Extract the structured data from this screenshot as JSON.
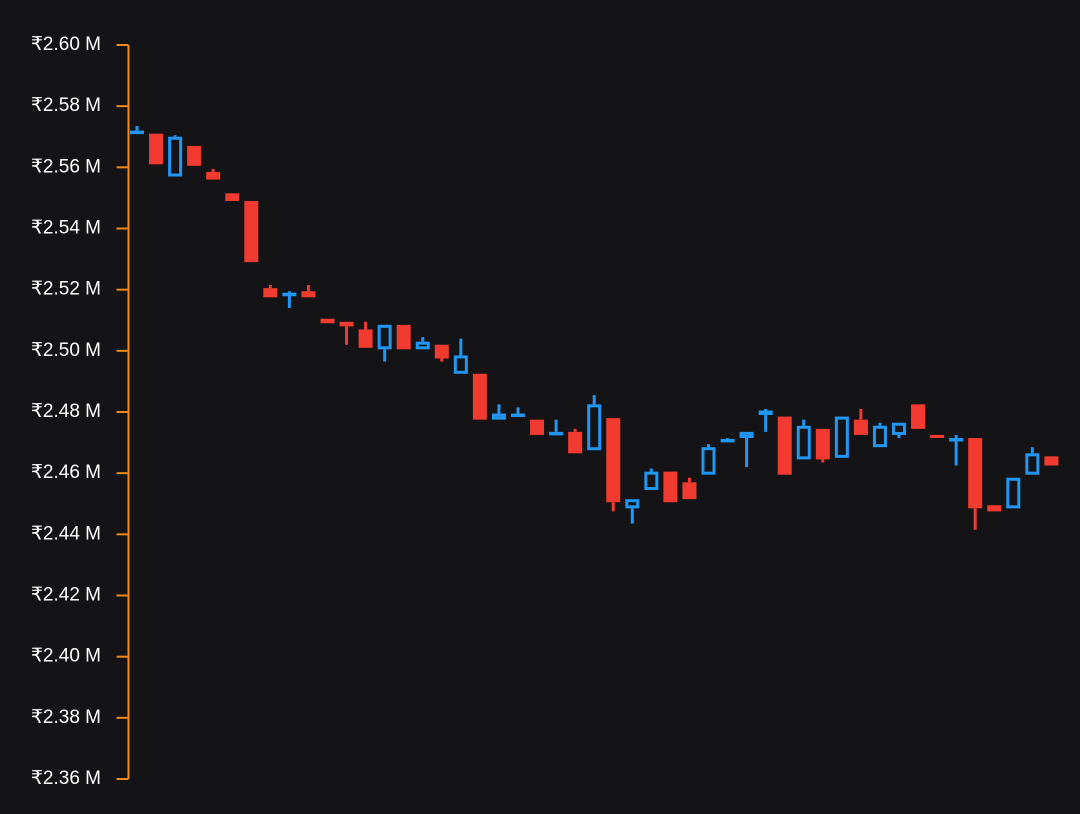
{
  "chart_data": {
    "type": "candlestick",
    "title": "",
    "xlabel": "",
    "ylabel": "",
    "ylim": [
      2.36,
      2.6
    ],
    "y_unit_suffix": "M",
    "y_currency_symbol": "₹",
    "grid": false,
    "y_ticks": [
      "₹2.60 M",
      "₹2.58 M",
      "₹2.56 M",
      "₹2.54 M",
      "₹2.52 M",
      "₹2.50 M",
      "₹2.48 M",
      "₹2.46 M",
      "₹2.44 M",
      "₹2.42 M",
      "₹2.40 M",
      "₹2.38 M",
      "₹2.36 M"
    ],
    "y_tick_values": [
      2.6,
      2.58,
      2.56,
      2.54,
      2.52,
      2.5,
      2.48,
      2.46,
      2.44,
      2.42,
      2.4,
      2.38,
      2.36
    ],
    "colors": {
      "background": "#141416",
      "axis": "#ef8a1f",
      "up_candle": "#2196f3",
      "down_candle": "#f23b30",
      "tick_text": "#ffffff"
    },
    "candles": [
      {
        "open": 2.5715,
        "high": 2.5735,
        "low": 2.571,
        "close": 2.572,
        "dir": "up"
      },
      {
        "open": 2.571,
        "high": 2.571,
        "low": 2.561,
        "close": 2.561,
        "dir": "down"
      },
      {
        "open": 2.557,
        "high": 2.5705,
        "low": 2.557,
        "close": 2.57,
        "dir": "up"
      },
      {
        "open": 2.567,
        "high": 2.567,
        "low": 2.5605,
        "close": 2.5605,
        "dir": "down"
      },
      {
        "open": 2.5585,
        "high": 2.5595,
        "low": 2.556,
        "close": 2.556,
        "dir": "down"
      },
      {
        "open": 2.5515,
        "high": 2.5515,
        "low": 2.549,
        "close": 2.549,
        "dir": "down"
      },
      {
        "open": 2.549,
        "high": 2.549,
        "low": 2.529,
        "close": 2.529,
        "dir": "down"
      },
      {
        "open": 2.5205,
        "high": 2.5215,
        "low": 2.5175,
        "close": 2.5175,
        "dir": "down"
      },
      {
        "open": 2.5185,
        "high": 2.5195,
        "low": 2.514,
        "close": 2.519,
        "dir": "up"
      },
      {
        "open": 2.5195,
        "high": 2.5215,
        "low": 2.5175,
        "close": 2.5175,
        "dir": "down"
      },
      {
        "open": 2.5105,
        "high": 2.5105,
        "low": 2.509,
        "close": 2.509,
        "dir": "down"
      },
      {
        "open": 2.5095,
        "high": 2.5095,
        "low": 2.502,
        "close": 2.508,
        "dir": "down"
      },
      {
        "open": 2.507,
        "high": 2.5095,
        "low": 2.501,
        "close": 2.501,
        "dir": "down"
      },
      {
        "open": 2.5005,
        "high": 2.5085,
        "low": 2.4965,
        "close": 2.5085,
        "dir": "up"
      },
      {
        "open": 2.5085,
        "high": 2.5085,
        "low": 2.5005,
        "close": 2.5005,
        "dir": "down"
      },
      {
        "open": 2.5005,
        "high": 2.5045,
        "low": 2.5005,
        "close": 2.503,
        "dir": "up"
      },
      {
        "open": 2.502,
        "high": 2.502,
        "low": 2.4965,
        "close": 2.4975,
        "dir": "down"
      },
      {
        "open": 2.4925,
        "high": 2.504,
        "low": 2.4925,
        "close": 2.4985,
        "dir": "up"
      },
      {
        "open": 2.4925,
        "high": 2.4925,
        "low": 2.4775,
        "close": 2.4775,
        "dir": "down"
      },
      {
        "open": 2.4775,
        "high": 2.4825,
        "low": 2.4775,
        "close": 2.4795,
        "dir": "up"
      },
      {
        "open": 2.479,
        "high": 2.4815,
        "low": 2.479,
        "close": 2.4795,
        "dir": "up"
      },
      {
        "open": 2.4775,
        "high": 2.4775,
        "low": 2.4725,
        "close": 2.4725,
        "dir": "down"
      },
      {
        "open": 2.4725,
        "high": 2.4775,
        "low": 2.4725,
        "close": 2.4735,
        "dir": "up"
      },
      {
        "open": 2.4735,
        "high": 2.4745,
        "low": 2.4665,
        "close": 2.4665,
        "dir": "down"
      },
      {
        "open": 2.4675,
        "high": 2.4855,
        "low": 2.4675,
        "close": 2.4825,
        "dir": "up"
      },
      {
        "open": 2.478,
        "high": 2.478,
        "low": 2.4475,
        "close": 2.4505,
        "dir": "down"
      },
      {
        "open": 2.4485,
        "high": 2.4515,
        "low": 2.4435,
        "close": 2.4515,
        "dir": "up"
      },
      {
        "open": 2.4545,
        "high": 2.4615,
        "low": 2.4545,
        "close": 2.4605,
        "dir": "up"
      },
      {
        "open": 2.4605,
        "high": 2.4605,
        "low": 2.4505,
        "close": 2.4505,
        "dir": "down"
      },
      {
        "open": 2.457,
        "high": 2.4585,
        "low": 2.4515,
        "close": 2.4515,
        "dir": "down"
      },
      {
        "open": 2.4595,
        "high": 2.4695,
        "low": 2.4595,
        "close": 2.4685,
        "dir": "up"
      },
      {
        "open": 2.4705,
        "high": 2.4715,
        "low": 2.4705,
        "close": 2.4712,
        "dir": "up"
      },
      {
        "open": 2.4715,
        "high": 2.4735,
        "low": 2.462,
        "close": 2.4735,
        "dir": "up"
      },
      {
        "open": 2.479,
        "high": 2.481,
        "low": 2.4735,
        "close": 2.4805,
        "dir": "up"
      },
      {
        "open": 2.4785,
        "high": 2.4785,
        "low": 2.4595,
        "close": 2.4595,
        "dir": "down"
      },
      {
        "open": 2.4645,
        "high": 2.4775,
        "low": 2.4645,
        "close": 2.4755,
        "dir": "up"
      },
      {
        "open": 2.4745,
        "high": 2.4745,
        "low": 2.4635,
        "close": 2.4645,
        "dir": "down"
      },
      {
        "open": 2.465,
        "high": 2.4785,
        "low": 2.465,
        "close": 2.4785,
        "dir": "up"
      },
      {
        "open": 2.4775,
        "high": 2.481,
        "low": 2.4725,
        "close": 2.4725,
        "dir": "down"
      },
      {
        "open": 2.4685,
        "high": 2.4765,
        "low": 2.4685,
        "close": 2.4755,
        "dir": "up"
      },
      {
        "open": 2.4725,
        "high": 2.4765,
        "low": 2.4715,
        "close": 2.4765,
        "dir": "up"
      },
      {
        "open": 2.4825,
        "high": 2.4825,
        "low": 2.4745,
        "close": 2.4745,
        "dir": "down"
      },
      {
        "open": 2.4725,
        "high": 2.4725,
        "low": 2.4715,
        "close": 2.4715,
        "dir": "down"
      },
      {
        "open": 2.4705,
        "high": 2.4725,
        "low": 2.4625,
        "close": 2.4715,
        "dir": "up"
      },
      {
        "open": 2.4715,
        "high": 2.4715,
        "low": 2.4415,
        "close": 2.4485,
        "dir": "down"
      },
      {
        "open": 2.4495,
        "high": 2.4495,
        "low": 2.4475,
        "close": 2.4475,
        "dir": "down"
      },
      {
        "open": 2.4485,
        "high": 2.4585,
        "low": 2.4485,
        "close": 2.4585,
        "dir": "up"
      },
      {
        "open": 2.4595,
        "high": 2.4685,
        "low": 2.4595,
        "close": 2.4665,
        "dir": "up"
      },
      {
        "open": 2.4655,
        "high": 2.4655,
        "low": 2.4625,
        "close": 2.4625,
        "dir": "down"
      }
    ]
  }
}
